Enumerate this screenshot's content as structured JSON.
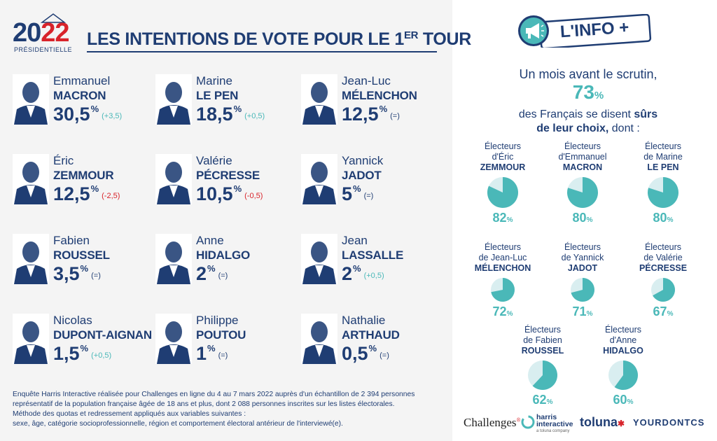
{
  "header": {
    "logo_year": "2022",
    "logo_sub": "PRÉSIDENTIELLE",
    "title": "LES INTENTIONS DE VOTE POUR LE 1",
    "title_sup": "ER",
    "title_end": " TOUR"
  },
  "candidates": [
    {
      "first": "Emmanuel",
      "last": "MACRON",
      "score": "30,5",
      "pct": "%",
      "delta": "(+3,5)",
      "trend": "pos"
    },
    {
      "first": "Marine",
      "last": "LE PEN",
      "score": "18,5",
      "pct": "%",
      "delta": "(+0,5)",
      "trend": "pos"
    },
    {
      "first": "Jean-Luc",
      "last": "MÉLENCHON",
      "score": "12,5",
      "pct": "%",
      "delta": "(=)",
      "trend": "neu"
    },
    {
      "first": "Éric",
      "last": "ZEMMOUR",
      "score": "12,5",
      "pct": "%",
      "delta": "(-2,5)",
      "trend": "neg"
    },
    {
      "first": "Valérie",
      "last": "PÉCRESSE",
      "score": "10,5",
      "pct": "%",
      "delta": "(-0,5)",
      "trend": "neg"
    },
    {
      "first": "Yannick",
      "last": "JADOT",
      "score": "5",
      "pct": "%",
      "delta": "(=)",
      "trend": "neu"
    },
    {
      "first": "Fabien",
      "last": "ROUSSEL",
      "score": "3,5",
      "pct": "%",
      "delta": "(=)",
      "trend": "neu"
    },
    {
      "first": "Anne",
      "last": "HIDALGO",
      "score": "2",
      "pct": "%",
      "delta": "(=)",
      "trend": "neu"
    },
    {
      "first": "Jean",
      "last": "LASSALLE",
      "score": "2",
      "pct": "%",
      "delta": "(+0,5)",
      "trend": "pos"
    },
    {
      "first": "Nicolas",
      "last": "DUPONT-AIGNAN",
      "score": "1,5",
      "pct": "%",
      "delta": "(+0,5)",
      "trend": "pos"
    },
    {
      "first": "Philippe",
      "last": "POUTOU",
      "score": "1",
      "pct": "%",
      "delta": "(=)",
      "trend": "neu"
    },
    {
      "first": "Nathalie",
      "last": "ARTHAUD",
      "score": "0,5",
      "pct": "%",
      "delta": "(=)",
      "trend": "neu"
    }
  ],
  "footnote": [
    "Enquête Harris Interactive réalisée pour Challenges en ligne du 4 au 7 mars 2022 auprès d'un échantillon de 2 394 personnes",
    "représentatif de la population française âgée de 18 ans et plus, dont 2 088 personnes inscrites sur les listes électorales.",
    "Méthode des quotas et redressement appliqués aux variables suivantes :",
    "sexe, âge, catégorie socioprofessionnelle, région et comportement électoral antérieur de l'interviewé(e)."
  ],
  "info": {
    "badge": "L'INFO +",
    "line1": "Un mois avant le scrutin,",
    "big": "73",
    "big_pct": "%",
    "line2a": "des Français se disent ",
    "line2b": "sûrs",
    "line3a": "de leur choix,",
    "line3b": " dont :"
  },
  "pies": [
    {
      "l1": "Électeurs",
      "l2": "d'Éric",
      "name": "ZEMMOUR",
      "value": 82,
      "label": "82",
      "pct": "%"
    },
    {
      "l1": "Électeurs",
      "l2": "d'Emmanuel",
      "name": "MACRON",
      "value": 80,
      "label": "80",
      "pct": "%"
    },
    {
      "l1": "Électeurs",
      "l2": "de Marine",
      "name": "LE PEN",
      "value": 80,
      "label": "80",
      "pct": "%"
    },
    {
      "l1": "Électeurs",
      "l2": "de Jean-Luc",
      "name": "MÉLENCHON",
      "value": 72,
      "label": "72",
      "pct": "%"
    },
    {
      "l1": "Électeurs",
      "l2": "de Yannick",
      "name": "JADOT",
      "value": 71,
      "label": "71",
      "pct": "%"
    },
    {
      "l1": "Électeurs",
      "l2": "de Valérie",
      "name": "PÉCRESSE",
      "value": 67,
      "label": "67",
      "pct": "%"
    },
    {
      "l1": "Électeurs",
      "l2": "de Fabien",
      "name": "ROUSSEL",
      "value": 62,
      "label": "62",
      "pct": "%"
    },
    {
      "l1": "Électeurs",
      "l2": "d'Anne",
      "name": "HIDALGO",
      "value": 60,
      "label": "60",
      "pct": "%"
    }
  ],
  "sponsors": [
    "Challenges",
    "harris",
    "interactive",
    "a toluna company",
    "toluna",
    "YOURDONTCS"
  ],
  "colors": {
    "navy": "#1f3d73",
    "teal": "#4ab8b8",
    "red": "#d8232a",
    "pie_bg": "#d9eef0"
  },
  "chart_data": [
    {
      "type": "bar",
      "title": "LES INTENTIONS DE VOTE POUR LE 1ER TOUR",
      "categories": [
        "MACRON",
        "LE PEN",
        "MÉLENCHON",
        "ZEMMOUR",
        "PÉCRESSE",
        "JADOT",
        "ROUSSEL",
        "HIDALGO",
        "LASSALLE",
        "DUPONT-AIGNAN",
        "POUTOU",
        "ARTHAUD"
      ],
      "values": [
        30.5,
        18.5,
        12.5,
        12.5,
        10.5,
        5,
        3.5,
        2,
        2,
        1.5,
        1,
        0.5
      ],
      "change": [
        3.5,
        0.5,
        0,
        -2.5,
        -0.5,
        0,
        0,
        0,
        0.5,
        0.5,
        0,
        0
      ]
    },
    {
      "type": "pie",
      "categories": [
        "ZEMMOUR",
        "MACRON",
        "LE PEN",
        "MÉLENCHON",
        "JADOT",
        "PÉCRESSE",
        "ROUSSEL",
        "HIDALGO"
      ],
      "values": [
        82,
        80,
        80,
        72,
        71,
        67,
        62,
        60
      ]
    }
  ]
}
